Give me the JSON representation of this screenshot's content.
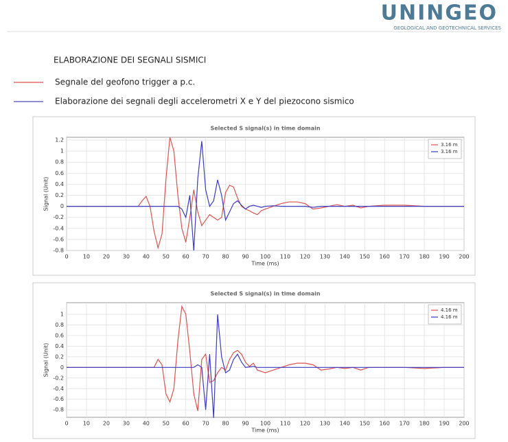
{
  "header": {
    "logo": "UNINGEO",
    "tagline": "GEOLOGICAL AND GEOTECHNICAL SERVICES"
  },
  "heading": "ELABORAZIONE DEI SEGNALI SISMICI",
  "legend_items": [
    {
      "label": "Segnale del geofono trigger a p.c.",
      "color": "#d9534f"
    },
    {
      "label": "Elaborazione dei segnali degli accelerometri X e Y del piezocono sismico",
      "color": "#4a4ab8"
    }
  ],
  "chart_data": [
    {
      "type": "line",
      "title": "Selected S signal(s) in time domain",
      "x_label": "Time (ms)",
      "y_label": "Signal (Unit)",
      "xlim": [
        0,
        200
      ],
      "ylim": [
        -0.8,
        1.25
      ],
      "xticks": [
        0,
        10,
        20,
        30,
        40,
        50,
        60,
        70,
        80,
        90,
        100,
        110,
        120,
        130,
        140,
        150,
        160,
        170,
        180,
        190,
        200
      ],
      "yticks": [
        -0.8,
        -0.6,
        -0.4,
        -0.2,
        0,
        0.2,
        0.4,
        0.6,
        0.8,
        1,
        1.2
      ],
      "grid": true,
      "legend": "upper right",
      "x": [
        0,
        36,
        38,
        40,
        42,
        44,
        46,
        48,
        50,
        52,
        54,
        56,
        58,
        60,
        62,
        64,
        66,
        68,
        70,
        72,
        74,
        76,
        78,
        80,
        82,
        84,
        86,
        88,
        90,
        92,
        94,
        96,
        98,
        100,
        104,
        108,
        112,
        116,
        120,
        124,
        128,
        132,
        136,
        140,
        144,
        148,
        152,
        160,
        170,
        180,
        190,
        200
      ],
      "series": [
        {
          "name": "3.16 m",
          "color": "#d9534f",
          "values": [
            0,
            0,
            0.1,
            0.18,
            0,
            -0.45,
            -0.75,
            -0.5,
            0.5,
            1.25,
            1.0,
            0.2,
            -0.4,
            -0.65,
            -0.2,
            0.3,
            -0.1,
            -0.35,
            -0.25,
            -0.15,
            -0.2,
            -0.25,
            -0.2,
            0.25,
            0.38,
            0.35,
            0.15,
            0,
            -0.05,
            -0.08,
            -0.12,
            -0.15,
            -0.08,
            -0.05,
            0,
            0.05,
            0.08,
            0.08,
            0.05,
            -0.05,
            -0.03,
            0,
            0.03,
            0,
            0.02,
            -0.03,
            0,
            0.02,
            0.02,
            0,
            0,
            0
          ]
        },
        {
          "name": "3.16 m",
          "color": "#3a3ac0",
          "values": [
            0,
            0,
            0,
            0,
            0,
            0,
            0,
            0,
            0,
            0,
            0,
            0,
            -0.05,
            -0.2,
            0.2,
            -0.8,
            0.5,
            1.18,
            0.3,
            0,
            0.1,
            0.48,
            0.2,
            -0.25,
            -0.1,
            0.05,
            0.1,
            0.02,
            -0.05,
            0,
            0.02,
            0,
            -0.02,
            0,
            0.01,
            0,
            0,
            0,
            0,
            -0.02,
            0,
            0,
            0,
            0,
            0,
            0,
            0,
            0,
            0,
            0,
            0,
            0
          ]
        }
      ]
    },
    {
      "type": "line",
      "title": "Selected S signal(s) in time domain",
      "x_label": "Time (ms)",
      "y_label": "Signal (Unit)",
      "xlim": [
        0,
        200
      ],
      "ylim": [
        -0.94,
        1.22
      ],
      "xticks": [
        0,
        10,
        20,
        30,
        40,
        50,
        60,
        70,
        80,
        90,
        100,
        110,
        120,
        130,
        140,
        150,
        160,
        170,
        180,
        190,
        200
      ],
      "yticks": [
        -0.8,
        -0.6,
        -0.4,
        -0.2,
        0,
        0.2,
        0.4,
        0.6,
        0.8,
        1
      ],
      "grid": true,
      "legend": "upper right",
      "x": [
        0,
        44,
        46,
        48,
        50,
        52,
        54,
        56,
        58,
        60,
        62,
        64,
        66,
        68,
        70,
        72,
        74,
        76,
        78,
        80,
        82,
        84,
        86,
        88,
        90,
        92,
        94,
        96,
        100,
        104,
        108,
        112,
        116,
        120,
        124,
        128,
        132,
        136,
        140,
        144,
        148,
        152,
        160,
        170,
        180,
        190,
        200
      ],
      "series": [
        {
          "name": "4.16 m",
          "color": "#d9534f",
          "values": [
            0,
            0,
            0.15,
            0.05,
            -0.5,
            -0.65,
            -0.4,
            0.5,
            1.15,
            1.0,
            0.3,
            -0.5,
            -0.82,
            0.15,
            0.25,
            -0.28,
            -0.25,
            -0.1,
            0,
            -0.05,
            0.15,
            0.28,
            0.32,
            0.25,
            0.1,
            0.02,
            0.08,
            -0.05,
            -0.1,
            -0.05,
            0,
            0.05,
            0.08,
            0.08,
            0.05,
            -0.05,
            -0.03,
            0,
            -0.02,
            0,
            -0.05,
            0,
            0,
            0,
            -0.02,
            0,
            0
          ]
        },
        {
          "name": "4.16 m",
          "color": "#3a3ac0",
          "values": [
            0,
            0,
            0,
            0,
            0,
            0,
            0,
            0,
            0,
            0,
            0,
            0,
            0.05,
            0,
            -0.8,
            0.25,
            -0.95,
            1.0,
            0.2,
            -0.1,
            -0.05,
            0.15,
            0.25,
            0.1,
            0,
            0.01,
            0.02,
            0,
            0,
            0,
            0,
            0,
            0,
            0,
            0,
            0,
            0,
            0,
            0,
            0,
            0,
            0,
            0,
            0,
            0,
            0,
            0
          ]
        }
      ]
    }
  ]
}
